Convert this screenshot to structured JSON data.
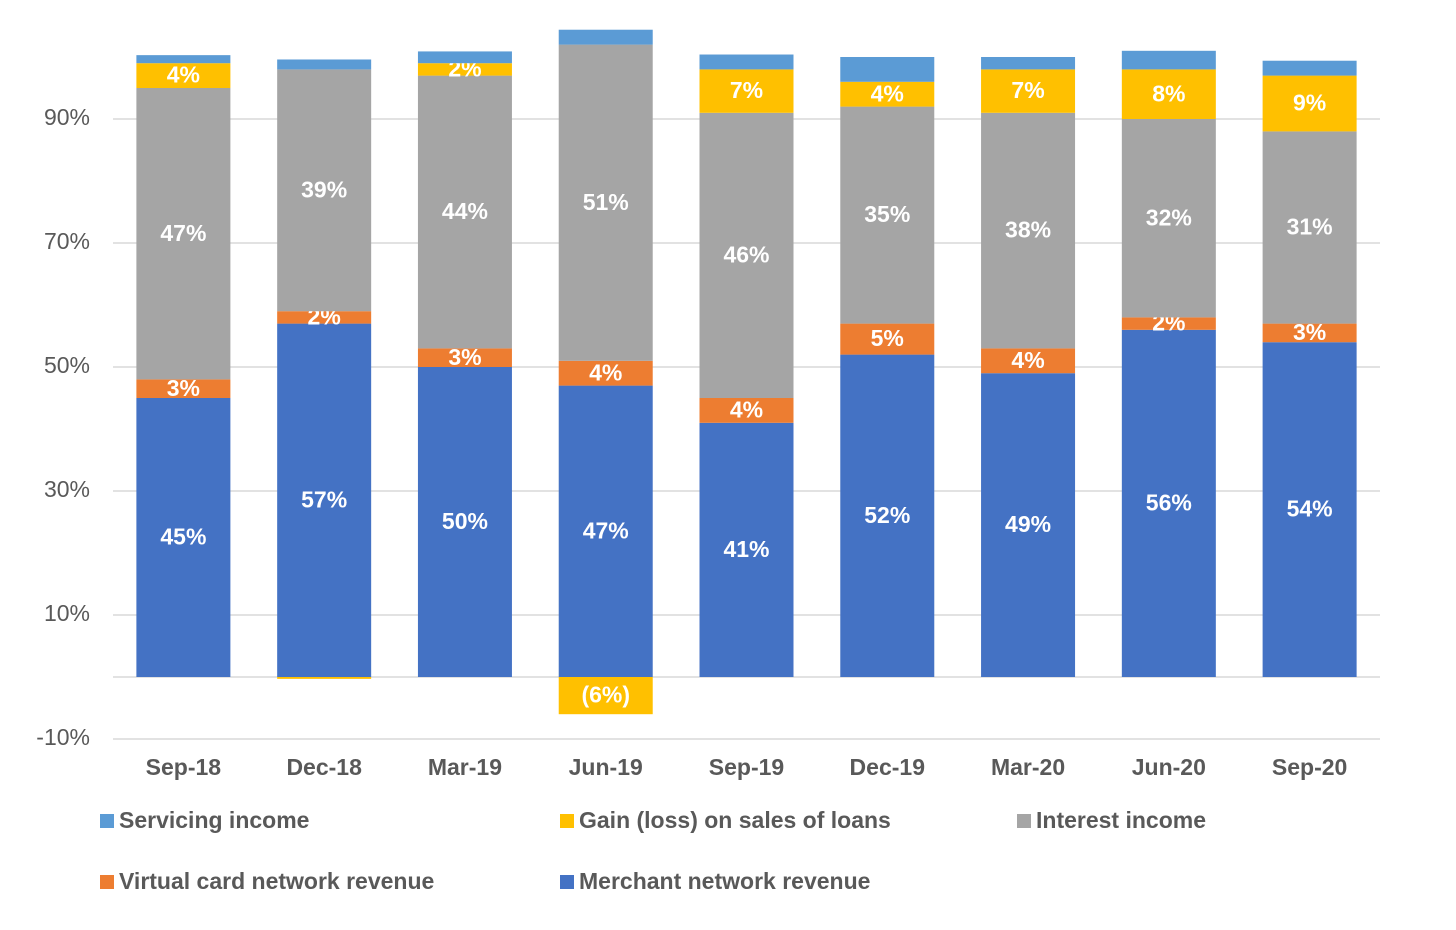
{
  "chart_data": {
    "type": "stacked_bar",
    "categories": [
      "Sep-18",
      "Dec-18",
      "Mar-19",
      "Jun-19",
      "Sep-19",
      "Dec-19",
      "Mar-20",
      "Jun-20",
      "Sep-20"
    ],
    "series": [
      {
        "name": "Servicing income",
        "color": "#5b9bd5",
        "values": [
          1.3,
          1.6,
          1.9,
          2.4,
          2.4,
          4,
          2,
          3,
          2.4
        ]
      },
      {
        "name": "Gain (loss) on sales of loans",
        "color": "#ffc000",
        "values": [
          4,
          -0.3,
          2,
          -6,
          7,
          4,
          7,
          8,
          9
        ],
        "value_labels": [
          "4%",
          null,
          "2%",
          "(6%)",
          "7%",
          "4%",
          "7%",
          "8%",
          "9%"
        ]
      },
      {
        "name": "Interest income",
        "color": "#a5a5a5",
        "values": [
          47,
          39,
          44,
          51,
          46,
          35,
          38,
          32,
          31
        ],
        "value_labels": [
          "47%",
          "39%",
          "44%",
          "51%",
          "46%",
          "35%",
          "38%",
          "32%",
          "31%"
        ]
      },
      {
        "name": "Virtual card network revenue",
        "color": "#ed7d31",
        "values": [
          3,
          2,
          3,
          4,
          4,
          5,
          4,
          2,
          3
        ],
        "value_labels": [
          "3%",
          "2%",
          "3%",
          "4%",
          "4%",
          "5%",
          "4%",
          "2%",
          "3%"
        ]
      },
      {
        "name": "Merchant network revenue",
        "color": "#4472c4",
        "values": [
          45,
          57,
          50,
          47,
          41,
          52,
          49,
          56,
          54
        ],
        "value_labels": [
          "45%",
          "57%",
          "50%",
          "47%",
          "41%",
          "52%",
          "49%",
          "56%",
          "54%"
        ]
      }
    ],
    "ylim": [
      -10,
      100
    ],
    "yticks": [
      {
        "value": -10,
        "label": "-10%"
      },
      {
        "value": 10,
        "label": "10%"
      },
      {
        "value": 30,
        "label": "30%"
      },
      {
        "value": 50,
        "label": "50%"
      },
      {
        "value": 70,
        "label": "70%"
      },
      {
        "value": 90,
        "label": "90%"
      }
    ],
    "grid": true
  }
}
